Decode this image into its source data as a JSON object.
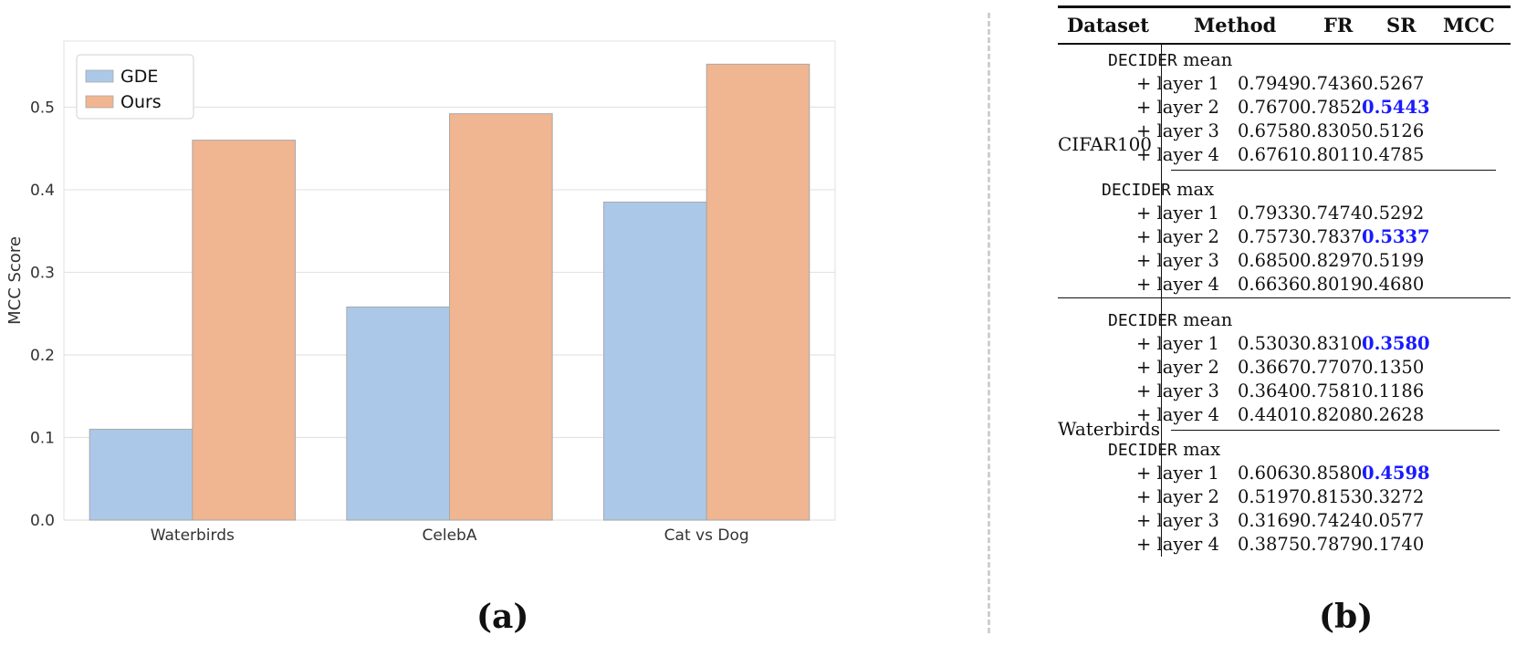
{
  "chart_data": {
    "type": "bar",
    "categories": [
      "Waterbirds",
      "CelebA",
      "Cat vs Dog"
    ],
    "series": [
      {
        "name": "GDE",
        "color": "#abc8e8",
        "values": [
          0.11,
          0.258,
          0.385
        ]
      },
      {
        "name": "Ours",
        "color": "#f0b591",
        "values": [
          0.46,
          0.492,
          0.552
        ]
      }
    ],
    "ylabel": "MCC Score",
    "ylim": [
      0,
      0.58
    ],
    "yticks": [
      0.0,
      0.1,
      0.2,
      0.3,
      0.4,
      0.5
    ],
    "ytick_labels": [
      "0.0",
      "0.1",
      "0.2",
      "0.3",
      "0.4",
      "0.5"
    ],
    "grid": true,
    "legend_position": "top-left"
  },
  "panel_labels": {
    "a": "(a)",
    "b": "(b)"
  },
  "table": {
    "headers": {
      "dataset": "Dataset",
      "method": "Method",
      "fr": "FR",
      "sr": "SR",
      "mcc": "MCC"
    },
    "groups": [
      {
        "dataset": "CIFAR100",
        "blocks": [
          {
            "method": "DECIDER",
            "agg": "mean",
            "rows": [
              {
                "layer": "+ layer 1",
                "fr": "0.7949",
                "sr": "0.7436",
                "mcc": "0.5267",
                "best": false
              },
              {
                "layer": "+ layer 2",
                "fr": "0.7670",
                "sr": "0.7852",
                "mcc": "0.5443",
                "best": true
              },
              {
                "layer": "+ layer 3",
                "fr": "0.6758",
                "sr": "0.8305",
                "mcc": "0.5126",
                "best": false
              },
              {
                "layer": "+ layer 4",
                "fr": "0.6761",
                "sr": "0.8011",
                "mcc": "0.4785",
                "best": false
              }
            ]
          },
          {
            "method": "DECIDER",
            "agg": "max",
            "rows": [
              {
                "layer": "+ layer 1",
                "fr": "0.7933",
                "sr": "0.7474",
                "mcc": "0.5292",
                "best": false
              },
              {
                "layer": "+ layer 2",
                "fr": "0.7573",
                "sr": "0.7837",
                "mcc": "0.5337",
                "best": true
              },
              {
                "layer": "+ layer 3",
                "fr": "0.6850",
                "sr": "0.8297",
                "mcc": "0.5199",
                "best": false
              },
              {
                "layer": "+ layer 4",
                "fr": "0.6636",
                "sr": "0.8019",
                "mcc": "0.4680",
                "best": false
              }
            ]
          }
        ]
      },
      {
        "dataset": "Waterbirds",
        "blocks": [
          {
            "method": "DECIDER",
            "agg": "mean",
            "rows": [
              {
                "layer": "+ layer 1",
                "fr": "0.5303",
                "sr": "0.8310",
                "mcc": "0.3580",
                "best": true
              },
              {
                "layer": "+ layer 2",
                "fr": "0.3667",
                "sr": "0.7707",
                "mcc": "0.1350",
                "best": false
              },
              {
                "layer": "+ layer 3",
                "fr": "0.3640",
                "sr": "0.7581",
                "mcc": "0.1186",
                "best": false
              },
              {
                "layer": "+ layer 4",
                "fr": "0.4401",
                "sr": "0.8208",
                "mcc": "0.2628",
                "best": false
              }
            ]
          },
          {
            "method": "DECIDER",
            "agg": "max",
            "rows": [
              {
                "layer": "+ layer 1",
                "fr": "0.6063",
                "sr": "0.8580",
                "mcc": "0.4598",
                "best": true
              },
              {
                "layer": "+ layer 2",
                "fr": "0.5197",
                "sr": "0.8153",
                "mcc": "0.3272",
                "best": false
              },
              {
                "layer": "+ layer 3",
                "fr": "0.3169",
                "sr": "0.7424",
                "mcc": "0.0577",
                "best": false
              },
              {
                "layer": "+ layer 4",
                "fr": "0.3875",
                "sr": "0.7879",
                "mcc": "0.1740",
                "best": false
              }
            ]
          }
        ]
      }
    ]
  }
}
